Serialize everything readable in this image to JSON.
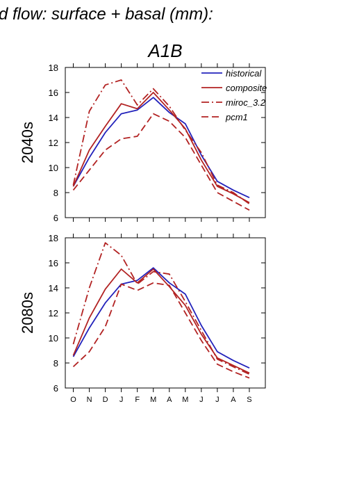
{
  "header": {
    "title": "d flow: surface + basal (mm):",
    "panel_title": "A1B"
  },
  "colors": {
    "historical": "#2222bb",
    "model": "#b22222",
    "axis": "#000000"
  },
  "chart_data": [
    {
      "type": "line",
      "scenario": "A1B",
      "ylabel": "2040s",
      "ylim": [
        6,
        18
      ],
      "yticks": [
        6,
        8,
        10,
        12,
        14,
        16,
        18
      ],
      "categories": [
        "O",
        "N",
        "D",
        "J",
        "F",
        "M",
        "A",
        "M",
        "J",
        "J",
        "A",
        "S"
      ],
      "show_month_labels": false,
      "legend": "top-right",
      "series": [
        {
          "name": "historical",
          "style": "solid",
          "color": "#2222bb",
          "values": [
            8.5,
            10.8,
            12.8,
            14.3,
            14.6,
            15.6,
            14.4,
            13.5,
            11.0,
            8.9,
            8.2,
            7.6
          ]
        },
        {
          "name": "composite",
          "style": "solid",
          "color": "#b22222",
          "values": [
            8.5,
            11.4,
            13.3,
            15.1,
            14.7,
            16.0,
            14.6,
            13.1,
            10.6,
            8.5,
            7.9,
            7.2
          ]
        },
        {
          "name": "miroc_3.2",
          "style": "dashdot",
          "color": "#b22222",
          "values": [
            8.6,
            14.5,
            16.6,
            17.0,
            15.0,
            16.3,
            14.9,
            13.0,
            11.2,
            8.6,
            8.0,
            7.1
          ]
        },
        {
          "name": "pcm1",
          "style": "dash",
          "color": "#b22222",
          "values": [
            8.2,
            9.8,
            11.4,
            12.3,
            12.5,
            14.3,
            13.7,
            12.4,
            10.2,
            8.0,
            7.3,
            6.6
          ]
        }
      ]
    },
    {
      "type": "line",
      "scenario": "A1B",
      "ylabel": "2080s",
      "ylim": [
        6,
        18
      ],
      "yticks": [
        6,
        8,
        10,
        12,
        14,
        16,
        18
      ],
      "categories": [
        "O",
        "N",
        "D",
        "J",
        "F",
        "M",
        "A",
        "M",
        "J",
        "J",
        "A",
        "S"
      ],
      "show_month_labels": true,
      "series": [
        {
          "name": "historical",
          "style": "solid",
          "color": "#2222bb",
          "values": [
            8.5,
            10.8,
            12.8,
            14.3,
            14.6,
            15.6,
            14.4,
            13.5,
            11.0,
            8.9,
            8.2,
            7.6
          ]
        },
        {
          "name": "composite",
          "style": "solid",
          "color": "#b22222",
          "values": [
            8.6,
            11.6,
            13.9,
            15.5,
            14.4,
            15.5,
            14.1,
            12.6,
            10.3,
            8.4,
            7.8,
            7.2
          ]
        },
        {
          "name": "miroc_3.2",
          "style": "dashdot",
          "color": "#b22222",
          "values": [
            9.5,
            14.0,
            17.6,
            16.6,
            14.3,
            15.3,
            15.1,
            12.9,
            10.6,
            8.3,
            7.7,
            7.1
          ]
        },
        {
          "name": "pcm1",
          "style": "dash",
          "color": "#b22222",
          "values": [
            7.7,
            8.9,
            10.9,
            14.3,
            13.8,
            14.4,
            14.2,
            12.0,
            9.8,
            7.9,
            7.3,
            6.8
          ]
        }
      ]
    }
  ]
}
